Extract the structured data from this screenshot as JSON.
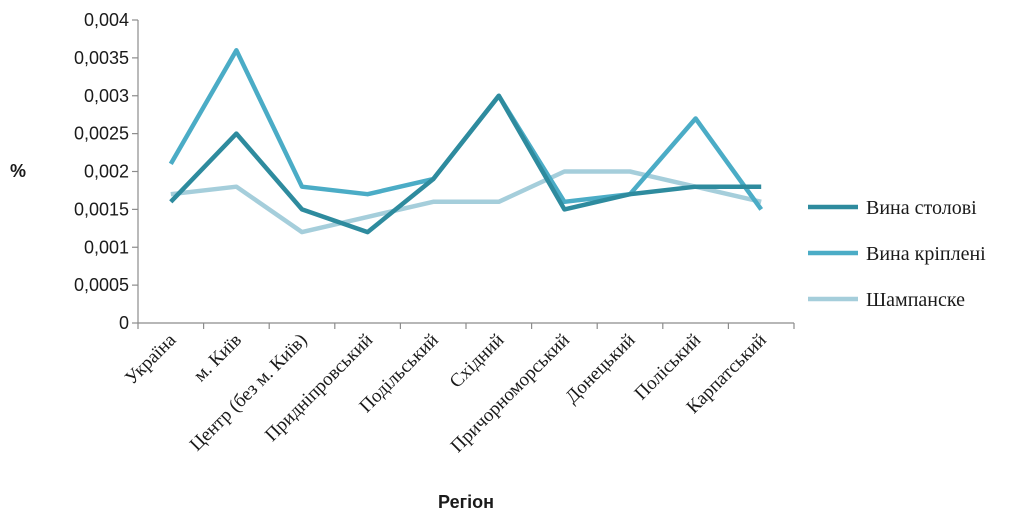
{
  "chart_data": {
    "type": "line",
    "title": "",
    "xlabel": "Регіон",
    "ylabel": "%",
    "ylim": [
      0,
      0.004
    ],
    "yticks": [
      "0",
      "0,0005",
      "0,001",
      "0,0015",
      "0,002",
      "0,0025",
      "0,003",
      "0,0035",
      "0,004"
    ],
    "ytick_values": [
      0,
      0.0005,
      0.001,
      0.0015,
      0.002,
      0.0025,
      0.003,
      0.0035,
      0.004
    ],
    "grid": false,
    "legend_position": "right",
    "categories": [
      "Україна",
      "м. Київ",
      "Центр (без м. Київ)",
      "Придніпровський",
      "Подільський",
      "Східний",
      "Причорноморський",
      "Донецький",
      "Поліський",
      "Карпатський"
    ],
    "series": [
      {
        "name": "Вина столові",
        "color": "#2e8b9e",
        "values": [
          0.0016,
          0.0025,
          0.0015,
          0.0012,
          0.0019,
          0.003,
          0.0015,
          0.0017,
          0.0018,
          0.0018
        ]
      },
      {
        "name": "Вина кріплені",
        "color": "#4bacc6",
        "values": [
          0.0021,
          0.0036,
          0.0018,
          0.0017,
          0.0019,
          0.003,
          0.0016,
          0.0017,
          0.0027,
          0.0015
        ]
      },
      {
        "name": "Шампанске",
        "color": "#a5cedb",
        "values": [
          0.0017,
          0.0018,
          0.0012,
          0.0014,
          0.0016,
          0.0016,
          0.002,
          0.002,
          0.0018,
          0.0016
        ]
      }
    ]
  }
}
